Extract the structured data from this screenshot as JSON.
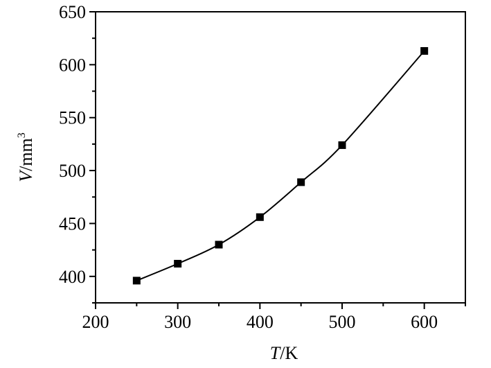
{
  "chart_data": {
    "type": "line",
    "title": "",
    "xlabel": {
      "symbol": "T",
      "unit": "/K"
    },
    "ylabel": {
      "symbol": "V",
      "unit": "/mm",
      "unit_sup": "3"
    },
    "xlim": [
      200,
      650
    ],
    "ylim": [
      375,
      650
    ],
    "x_ticks": [
      200,
      300,
      400,
      500,
      600
    ],
    "y_ticks": [
      400,
      450,
      500,
      550,
      600,
      650
    ],
    "x_minor_step": 50,
    "y_minor_step": 25,
    "grid": false,
    "series": [
      {
        "x": [
          250,
          300,
          350,
          400,
          450,
          500,
          600
        ],
        "y": [
          396,
          412,
          430,
          456,
          489,
          524,
          613
        ],
        "marker": "square",
        "color": "#000000"
      }
    ]
  }
}
